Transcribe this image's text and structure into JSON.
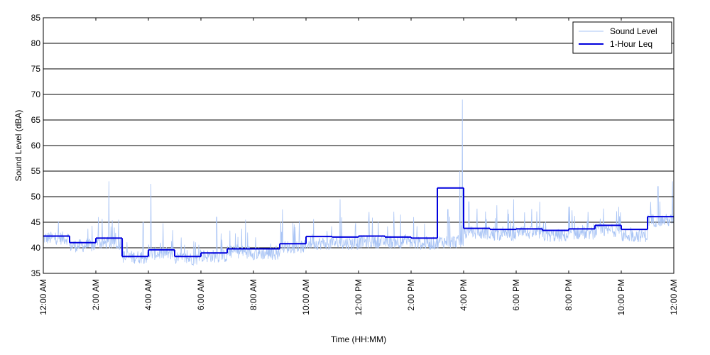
{
  "chart_data": {
    "type": "line",
    "title": "",
    "xlabel": "Time (HH:MM)",
    "ylabel": "Sound Level (dBA)",
    "xlim": [
      0,
      24
    ],
    "ylim": [
      35,
      85
    ],
    "yticks": [
      35,
      40,
      45,
      50,
      55,
      60,
      65,
      70,
      75,
      80,
      85
    ],
    "xtick_hours": [
      0,
      2,
      4,
      6,
      8,
      10,
      12,
      14,
      16,
      18,
      20,
      22,
      24
    ],
    "xtick_labels": [
      "12:00 AM",
      "2:00 AM",
      "4:00 AM",
      "6:00 AM",
      "8:00 AM",
      "10:00 AM",
      "12:00 PM",
      "2:00 PM",
      "4:00 PM",
      "6:00 PM",
      "8:00 PM",
      "10:00 PM",
      "12:00 AM"
    ],
    "grid": "horizontal",
    "legend_position": "top-right",
    "colors": {
      "sound_level": "#a9c4f5",
      "leq": "#0000dd"
    },
    "series": [
      {
        "name": "Sound Level",
        "style": "thin",
        "hourly_base": [
          41.5,
          40.0,
          40.5,
          37.8,
          38.5,
          37.5,
          38.0,
          38.8,
          38.5,
          39.8,
          40.5,
          40.5,
          40.8,
          40.8,
          40.5,
          40.8,
          42.5,
          42.2,
          42.5,
          42.0,
          42.5,
          43.0,
          42.0,
          45.0
        ],
        "peaks": [
          {
            "x": 2.5,
            "y": 53
          },
          {
            "x": 2.1,
            "y": 46
          },
          {
            "x": 4.1,
            "y": 52.5
          },
          {
            "x": 3.8,
            "y": 45
          },
          {
            "x": 6.6,
            "y": 46
          },
          {
            "x": 7.7,
            "y": 45.5
          },
          {
            "x": 9.1,
            "y": 47.5
          },
          {
            "x": 11.3,
            "y": 49.5
          },
          {
            "x": 12.4,
            "y": 47
          },
          {
            "x": 13.6,
            "y": 46.5
          },
          {
            "x": 14.1,
            "y": 46
          },
          {
            "x": 15.4,
            "y": 47.5
          },
          {
            "x": 15.85,
            "y": 55
          },
          {
            "x": 15.95,
            "y": 69
          },
          {
            "x": 16.2,
            "y": 49
          },
          {
            "x": 17.9,
            "y": 49.5
          },
          {
            "x": 18.9,
            "y": 49
          },
          {
            "x": 20.0,
            "y": 48
          },
          {
            "x": 21.9,
            "y": 48
          },
          {
            "x": 23.4,
            "y": 52
          },
          {
            "x": 23.95,
            "y": 53
          }
        ]
      },
      {
        "name": "1-Hour Leq",
        "style": "step",
        "x": [
          0,
          1,
          2,
          3,
          4,
          5,
          6,
          7,
          8,
          9,
          10,
          11,
          12,
          13,
          14,
          15,
          16,
          17,
          18,
          19,
          20,
          21,
          22,
          23
        ],
        "values": [
          42.3,
          41.0,
          41.9,
          38.3,
          39.6,
          38.3,
          39.0,
          39.8,
          39.8,
          40.8,
          42.2,
          42.1,
          42.3,
          42.1,
          41.9,
          51.7,
          43.8,
          43.6,
          43.7,
          43.4,
          43.7,
          44.4,
          43.6,
          46.1
        ]
      }
    ]
  }
}
